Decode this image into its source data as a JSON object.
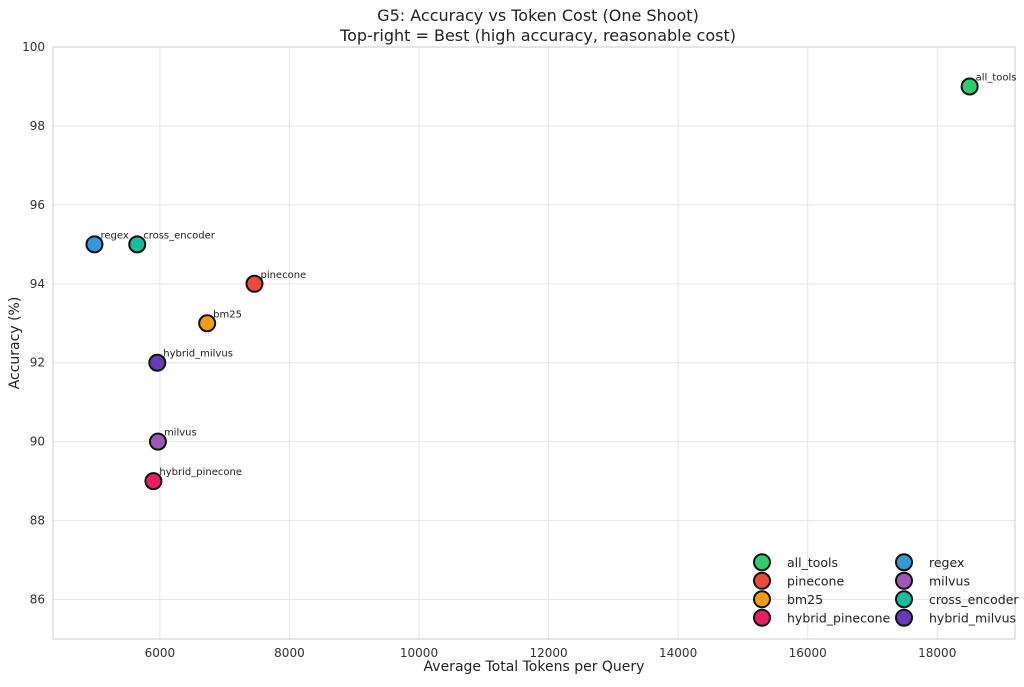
{
  "chart_data": {
    "type": "scatter",
    "title": "G5: Accuracy vs Token Cost (One Shoot)",
    "subtitle": "Top-right = Best (high accuracy, reasonable cost)",
    "xlabel": "Average Total Tokens per Query",
    "ylabel": "Accuracy (%)",
    "xlim": [
      4350,
      19200
    ],
    "ylim": [
      85,
      100
    ],
    "xticks": [
      6000,
      8000,
      10000,
      12000,
      14000,
      16000,
      18000
    ],
    "yticks": [
      86,
      88,
      90,
      92,
      94,
      96,
      98,
      100
    ],
    "grid": true,
    "legend_position": "bottom-right",
    "legend_columns": 2,
    "series": [
      {
        "name": "all_tools",
        "x": 18500,
        "y": 99,
        "color": "#2ecc71"
      },
      {
        "name": "regex",
        "x": 4990,
        "y": 95,
        "color": "#3498db"
      },
      {
        "name": "pinecone",
        "x": 7460,
        "y": 94,
        "color": "#e74c3c"
      },
      {
        "name": "milvus",
        "x": 5970,
        "y": 90,
        "color": "#9b59b6"
      },
      {
        "name": "bm25",
        "x": 6730,
        "y": 93,
        "color": "#f39c12"
      },
      {
        "name": "cross_encoder",
        "x": 5650,
        "y": 95,
        "color": "#1abc9c"
      },
      {
        "name": "hybrid_pinecone",
        "x": 5900,
        "y": 89,
        "color": "#e91e63"
      },
      {
        "name": "hybrid_milvus",
        "x": 5960,
        "y": 92,
        "color": "#673ab7"
      }
    ]
  }
}
